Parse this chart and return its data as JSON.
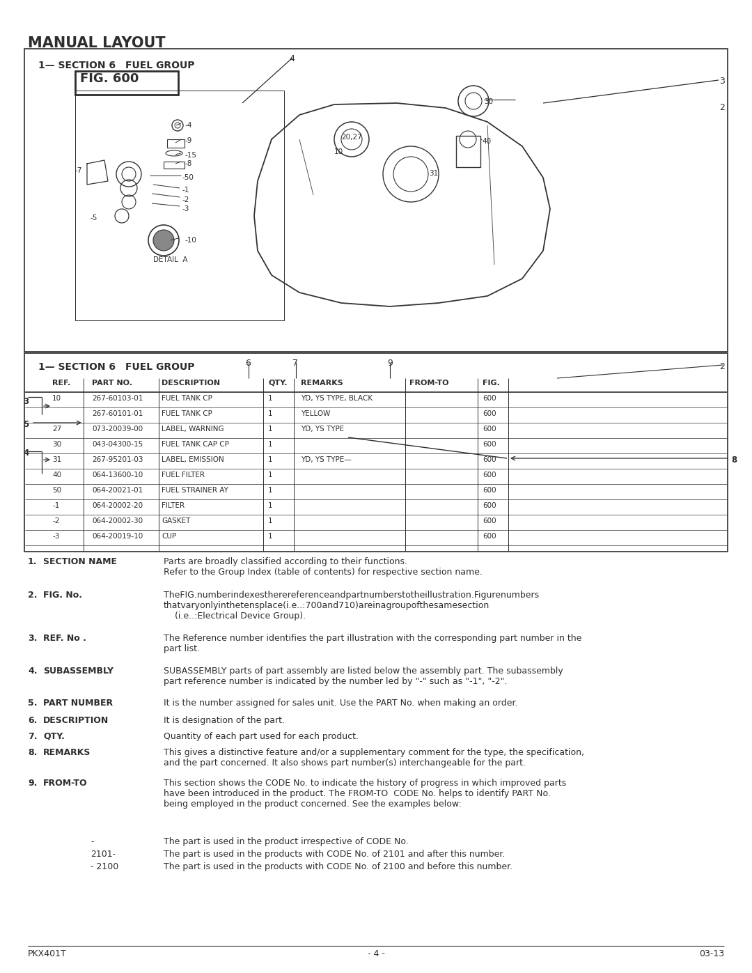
{
  "page_title": "MANUAL LAYOUT",
  "bg_color": "#ffffff",
  "text_color": "#2d2d2d",
  "footer_left": "PKX401T",
  "footer_center": "- 4 -",
  "footer_right": "03-13",
  "section_header": "1— SECTION 6     FUEL GROUP",
  "fig_number": "FIG. 600",
  "table_headers": [
    "REF.",
    "PART NO.",
    "DESCRIPTION",
    "QTY.",
    "REMARKS",
    "FROM-TO",
    "FIG."
  ],
  "table_rows": [
    [
      "10",
      "267-60103-01",
      "FUEL TANK CP",
      "1",
      "YD, YS TYPE, BLACK",
      "",
      "600"
    ],
    [
      "",
      "267-60101-01",
      "FUEL TANK CP",
      "1",
      "YELLOW",
      "",
      "600"
    ],
    [
      "27",
      "073-20039-00",
      "LABEL, WARNING",
      "1",
      "YD, YS TYPE",
      "",
      "600"
    ],
    [
      "30",
      "043-04300-15",
      "FUEL TANK CAP CP",
      "1",
      "",
      "",
      "600"
    ],
    [
      "31",
      "267-95201-03",
      "LABEL, EMISSION",
      "1",
      "YD, YS TYPE—",
      "",
      "600"
    ],
    [
      "40",
      "064-13600-10",
      "FUEL FILTER",
      "1",
      "",
      "",
      "600"
    ],
    [
      "50",
      "064-20021-01",
      "FUEL STRAINER AY",
      "1",
      "",
      "",
      "600"
    ],
    [
      "-1",
      "064-20002-20",
      "FILTER",
      "1",
      "",
      "",
      "600"
    ],
    [
      "-2",
      "064-20002-30",
      "GASKET",
      "1",
      "",
      "",
      "600"
    ],
    [
      "-3",
      "064-20019-10",
      "CUP",
      "1",
      "",
      "",
      "600"
    ]
  ],
  "desc_items": [
    [
      800,
      "1.",
      "SECTION NAME",
      "Parts are broadly classified according to their functions.\nRefer to the Group Index (table of contents) for respective section name."
    ],
    [
      848,
      "2.",
      "FIG. No.",
      "TheFIG.numberindexestherereferenceandpartnumberstotheillustration.Figurenumbers\nthatvaryonlyinthetensplace(i.e..:700and710)areinagroupofthesamesection\n    (i.e..:Electrical Device Group)."
    ],
    [
      910,
      "3.",
      "REF. No .",
      "The Reference number identifies the part illustration with the corresponding part number in the\npart list."
    ],
    [
      957,
      "4.",
      "SUBASSEMBLY",
      "SUBASSEMBLY parts of part assembly are listed below the assembly part. The subassembly\npart reference number is indicated by the number led by \"-\" such as \"-1\", \"-2\"."
    ],
    [
      1003,
      "5.",
      "PART NUMBER",
      "It is the number assigned for sales unit. Use the PART No. when making an order."
    ],
    [
      1028,
      "6.",
      "DESCRIPTION",
      "It is designation of the part."
    ],
    [
      1051,
      "7.",
      "QTY.",
      "Quantity of each part used for each product."
    ],
    [
      1074,
      "8.",
      "REMARKS",
      "This gives a distinctive feature and/or a supplementary comment for the type, the specification,\nand the part concerned. It also shows part number(s) interchangeable for the part."
    ],
    [
      1118,
      "9.",
      "FROM-TO",
      "This section shows the CODE No. to indicate the history of progress in which improved parts\nhave been introduced in the product. The FROM-TO  CODE No. helps to identify PART No.\nbeing employed in the product concerned. See the examples below:"
    ]
  ],
  "code_examples": [
    [
      1202,
      "-",
      "The part is used in the product irrespective of CODE No."
    ],
    [
      1220,
      "2101-",
      "The part is used in the products with CODE No. of 2101 and after this number."
    ],
    [
      1238,
      "- 2100",
      "The part is used in the products with CODE No. of 2100 and before this number."
    ]
  ]
}
